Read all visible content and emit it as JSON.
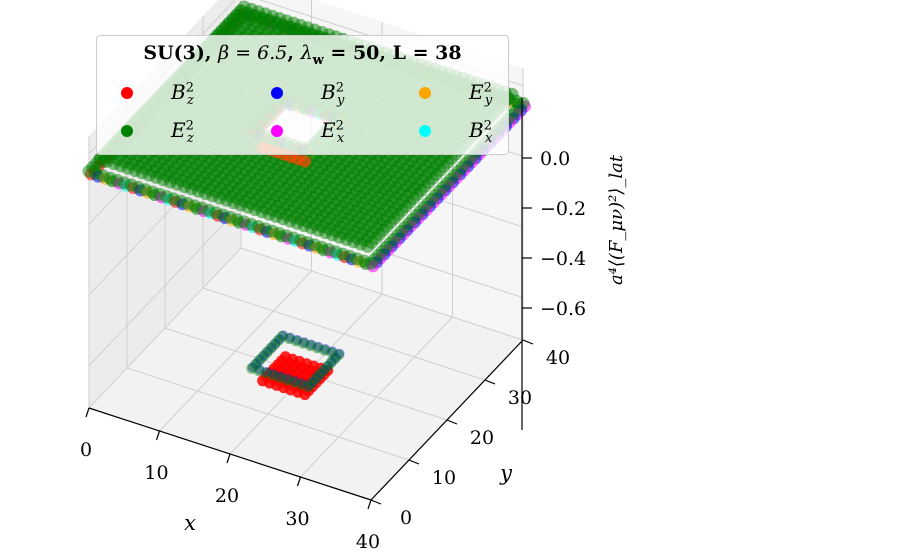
{
  "chart_data": {
    "type": "scatter",
    "projection": "3d",
    "title": "SU(3), β = 6.5, λ_w = 50, L = 38",
    "xlabel": "x",
    "ylabel": "y",
    "zlabel": "a⁴⟨(F_μν)²⟩_lat",
    "xlim": [
      0,
      40
    ],
    "ylim": [
      0,
      40
    ],
    "zlim": [
      -0.72,
      0.05
    ],
    "xticks": [
      "0",
      "10",
      "20",
      "30",
      "40"
    ],
    "yticks": [
      "0",
      "10",
      "20",
      "30",
      "40"
    ],
    "zticks": [
      "0.0",
      "−0.2",
      "−0.4",
      "−0.6"
    ],
    "legend_position": "top-left",
    "grid": true,
    "series": [
      {
        "name": "B²_z",
        "color": "#ff0000"
      },
      {
        "name": "B²_y",
        "color": "#0000ff"
      },
      {
        "name": "E²_y",
        "color": "#ffa500"
      },
      {
        "name": "E²_z",
        "color": "#008000"
      },
      {
        "name": "E²_x",
        "color": "#ff00ff"
      },
      {
        "name": "B²_x",
        "color": "#00ffff"
      }
    ],
    "surfaces": {
      "plateau_z": -0.02,
      "plateau_min_z": -0.05,
      "hole_x": [
        15,
        23
      ],
      "hole_y": [
        15,
        23
      ],
      "hole_rim_z": -0.01,
      "well_x": [
        15,
        23
      ],
      "well_y": [
        15,
        23
      ],
      "well_bottom_z": -0.72,
      "well_edge_z": -0.68
    }
  },
  "legend": {
    "title_parts": {
      "group": "SU(3)",
      "beta": "β = 6.5",
      "lambda": "λ",
      "lambda_sub": "w",
      "lambda_val": " = 50",
      "L": "L = 38"
    },
    "items": [
      {
        "base": "B",
        "sup": "2",
        "sub": "z"
      },
      {
        "base": "B",
        "sup": "2",
        "sub": "y"
      },
      {
        "base": "E",
        "sup": "2",
        "sub": "y"
      },
      {
        "base": "E",
        "sup": "2",
        "sub": "z"
      },
      {
        "base": "E",
        "sup": "2",
        "sub": "x"
      },
      {
        "base": "B",
        "sup": "2",
        "sub": "x"
      }
    ]
  }
}
